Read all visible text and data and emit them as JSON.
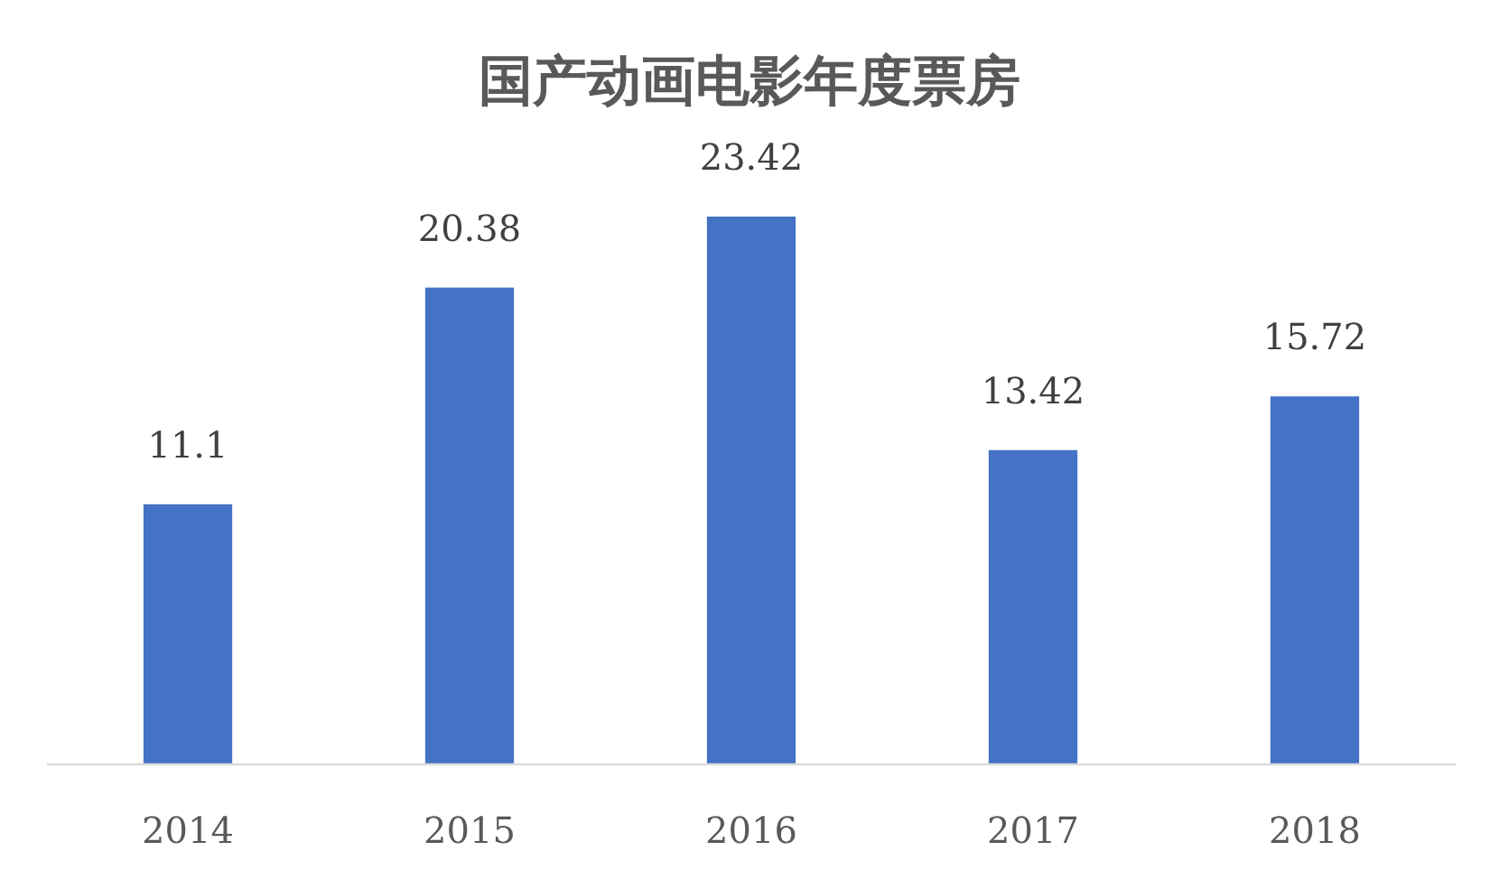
{
  "chart_data": {
    "type": "bar",
    "title": "国产动画电影年度票房",
    "categories": [
      "2014",
      "2015",
      "2016",
      "2017",
      "2018"
    ],
    "values": [
      11.1,
      20.38,
      23.42,
      13.42,
      15.72
    ],
    "color": "#4472c4",
    "data_labels": true
  }
}
